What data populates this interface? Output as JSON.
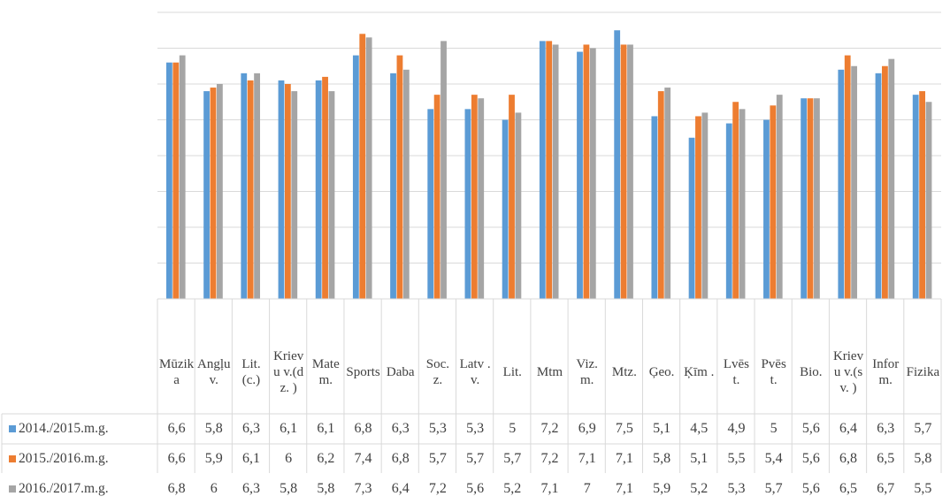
{
  "chart_data": {
    "type": "bar",
    "categories": [
      "Mūzika",
      "Angļu v.",
      "Lit.(c.)",
      "Krievu v.(dz. )",
      "Matem.",
      "Sports",
      "Daba",
      "Soc. z.",
      "Latv .v.",
      "Lit.",
      "Mtm",
      "Viz. m.",
      "Mtz.",
      "Ģeo.",
      "Ķīm .",
      "Lvēs t.",
      "Pvēs t.",
      "Bio.",
      "Krievu v.(sv. )",
      "Inform.",
      "Fizika"
    ],
    "series": [
      {
        "name": "2014./2015.m.g.",
        "color": "#5B9BD5",
        "values": [
          6.6,
          5.8,
          6.3,
          6.1,
          6.1,
          6.8,
          6.3,
          5.3,
          5.3,
          5,
          7.2,
          6.9,
          7.5,
          5.1,
          4.5,
          4.9,
          5,
          5.6,
          6.4,
          6.3,
          5.7
        ]
      },
      {
        "name": "2015./2016.m.g.",
        "color": "#ED7D31",
        "values": [
          6.6,
          5.9,
          6.1,
          6,
          6.2,
          7.4,
          6.8,
          5.7,
          5.7,
          5.7,
          7.2,
          7.1,
          7.1,
          5.8,
          5.1,
          5.5,
          5.4,
          5.6,
          6.8,
          6.5,
          5.8
        ]
      },
      {
        "name": "2016./2017.m.g.",
        "color": "#A5A5A5",
        "values": [
          6.8,
          6,
          6.3,
          5.8,
          5.8,
          7.3,
          6.4,
          7.2,
          5.6,
          5.2,
          7.1,
          7,
          7.1,
          5.9,
          5.2,
          5.3,
          5.7,
          5.6,
          6.5,
          6.7,
          5.5
        ]
      }
    ],
    "ylim": [
      0,
      8
    ],
    "grid": true,
    "legend": "data table below chart",
    "title": "",
    "xlabel": "",
    "ylabel": ""
  }
}
